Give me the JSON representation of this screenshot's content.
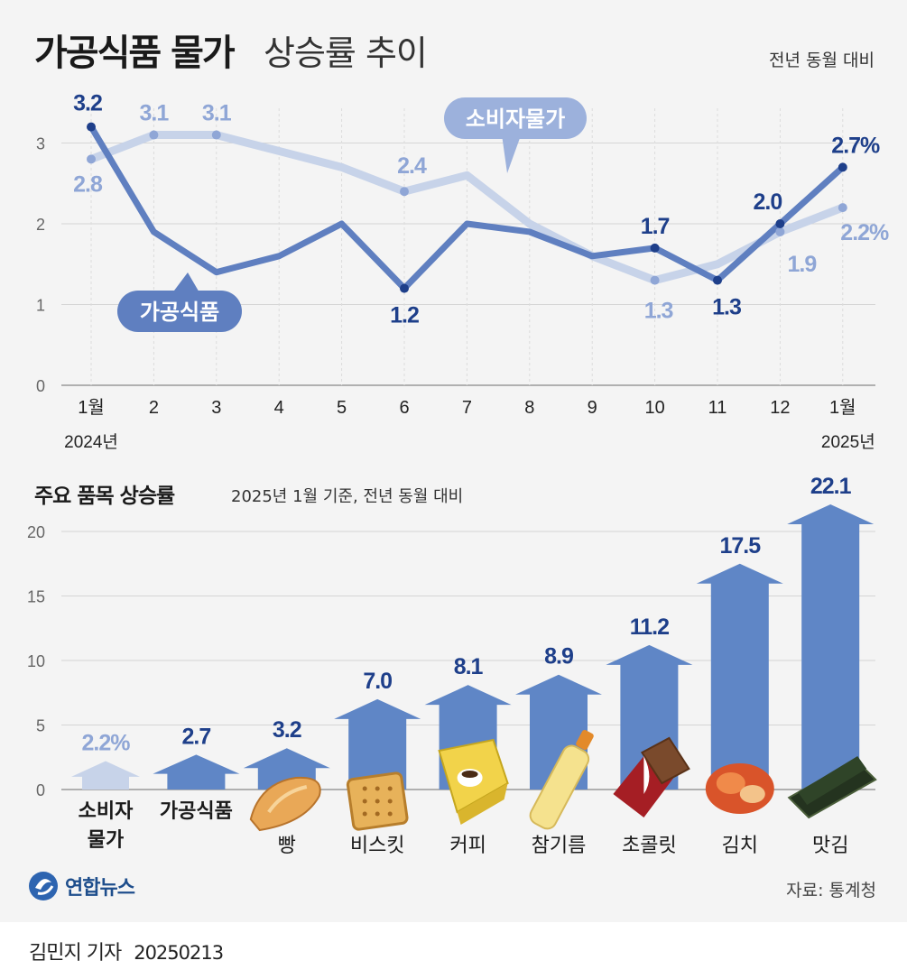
{
  "header": {
    "title_bold": "가공식품 물가",
    "title_light": "상승률 추이",
    "basis": "전년 동월 대비"
  },
  "chart_data": [
    {
      "type": "line",
      "x": [
        "1월",
        "2",
        "3",
        "4",
        "5",
        "6",
        "7",
        "8",
        "9",
        "10",
        "11",
        "12",
        "1월"
      ],
      "x_year_labels": {
        "first": "2024년",
        "last": "2025년"
      },
      "yticks": [
        "0",
        "1",
        "2",
        "3"
      ],
      "ylim": [
        0,
        3.5
      ],
      "grid": true,
      "series": [
        {
          "name": "소비자물가",
          "color": "#c7d3e9",
          "values": [
            2.8,
            3.1,
            3.1,
            2.9,
            2.7,
            2.4,
            2.6,
            2.0,
            1.6,
            1.3,
            1.5,
            1.9,
            2.2
          ],
          "labels": {
            "0": "2.8",
            "1": "3.1",
            "2": "3.1",
            "5": "2.4",
            "9": "1.3",
            "11": "1.9",
            "12": "2.2%"
          }
        },
        {
          "name": "가공식품",
          "color": "#5f7fc0",
          "values": [
            3.2,
            1.9,
            1.4,
            1.6,
            2.0,
            1.2,
            2.0,
            1.9,
            1.6,
            1.7,
            1.3,
            2.0,
            2.7
          ],
          "labels": {
            "0": "3.2",
            "5": "1.2",
            "9": "1.7",
            "10": "1.3",
            "11": "2.0",
            "12": "2.7%"
          }
        }
      ]
    },
    {
      "type": "bar",
      "title": "주요 품목 상승률",
      "subtitle": "2025년 1월 기준, 전년 동월 대비",
      "categories": [
        "소비자물가",
        "가공식품",
        "빵",
        "비스킷",
        "커피",
        "참기름",
        "초콜릿",
        "김치",
        "맛김"
      ],
      "category_labels": [
        [
          "소비자",
          "물가"
        ],
        [
          "가공식품"
        ],
        [
          "빵"
        ],
        [
          "비스킷"
        ],
        [
          "커피"
        ],
        [
          "참기름"
        ],
        [
          "초콜릿"
        ],
        [
          "김치"
        ],
        [
          "맛김"
        ]
      ],
      "values": [
        2.2,
        2.7,
        3.2,
        7.0,
        8.1,
        8.9,
        11.2,
        17.5,
        22.1
      ],
      "value_labels": [
        "2.2%",
        "2.7",
        "3.2",
        "7.0",
        "8.1",
        "8.9",
        "11.2",
        "17.5",
        "22.1"
      ],
      "yticks": [
        "0",
        "5",
        "10",
        "15",
        "20"
      ],
      "ylim": [
        0,
        22.1
      ],
      "grid": true,
      "colors": {
        "highlight": "#c7d3e9",
        "bar": "#5f86c6",
        "label": "#1e3f8a"
      },
      "icons": [
        "",
        "",
        "bread-icon",
        "biscuit-icon",
        "coffee-box-icon",
        "sesame-oil-bottle-icon",
        "chocolate-icon",
        "kimchi-icon",
        "seaweed-icon"
      ]
    }
  ],
  "footer": {
    "logo_text": "연합뉴스",
    "source": "자료: 통계청",
    "credit": "김민지 기자",
    "date": "20250213"
  }
}
